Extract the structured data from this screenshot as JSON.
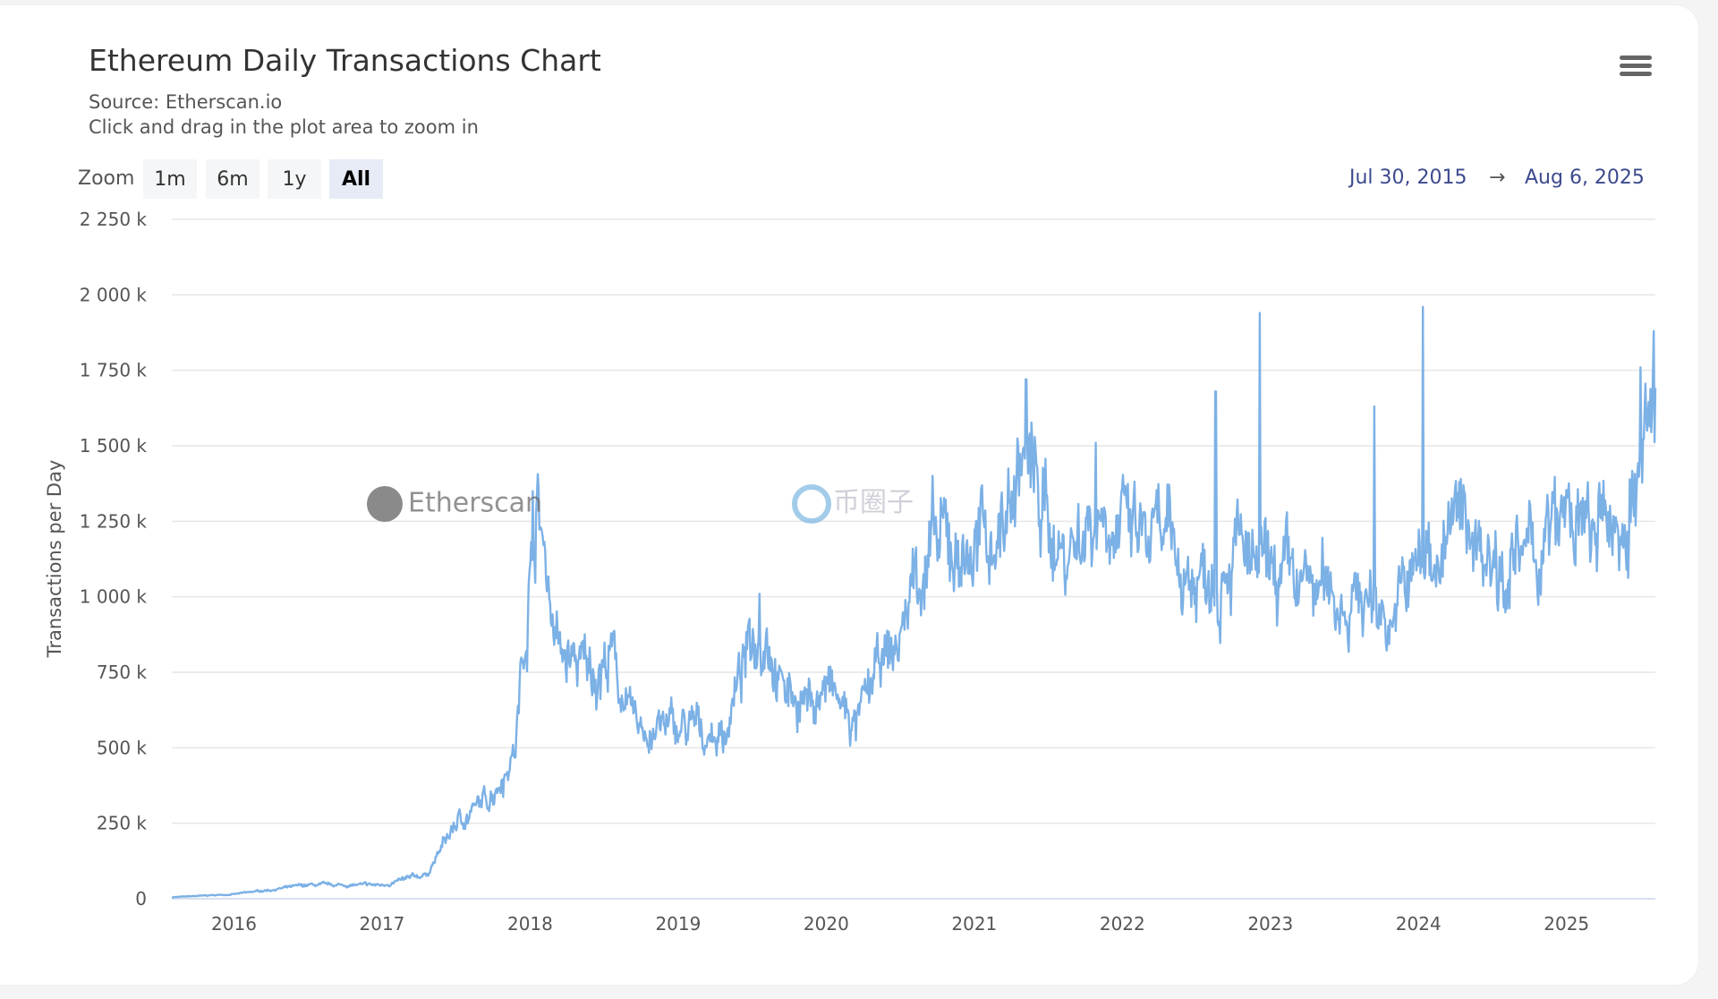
{
  "header": {
    "title": "Ethereum Daily Transactions Chart",
    "source": "Source: Etherscan.io",
    "hint": "Click and drag in the plot area to zoom in",
    "menu_icon": "hamburger-menu-icon"
  },
  "zoom": {
    "label": "Zoom",
    "buttons": [
      "1m",
      "6m",
      "1y",
      "All"
    ],
    "active": "All"
  },
  "range": {
    "from": "Jul 30, 2015",
    "arrow": "→",
    "to": "Aug 6, 2025"
  },
  "watermarks": {
    "etherscan": "Etherscan",
    "other": "币圈子"
  },
  "chart_data": {
    "type": "line",
    "title": "Ethereum Daily Transactions Chart",
    "ylabel": "Transactions per Day",
    "xlabel": "",
    "xlim": [
      2015.58,
      2025.6
    ],
    "ylim": [
      0,
      2250
    ],
    "y_unit": "thousands",
    "y_ticks": [
      0,
      250,
      500,
      750,
      1000,
      1250,
      1500,
      1750,
      2000,
      2250
    ],
    "y_tick_labels": [
      "0",
      "250 k",
      "500 k",
      "750 k",
      "1 000 k",
      "1 250 k",
      "1 500 k",
      "1 750 k",
      "2 000 k",
      "2 250 k"
    ],
    "x_ticks": [
      2016,
      2017,
      2018,
      2019,
      2020,
      2021,
      2022,
      2023,
      2024,
      2025
    ],
    "x_tick_labels": [
      "2016",
      "2017",
      "2018",
      "2019",
      "2020",
      "2021",
      "2022",
      "2023",
      "2024",
      "2025"
    ],
    "grid": true,
    "legend": "none",
    "color": "#7cb1e6",
    "series": [
      {
        "name": "Transactions per Day",
        "points": [
          [
            2015.58,
            5
          ],
          [
            2016.0,
            15
          ],
          [
            2016.5,
            45
          ],
          [
            2017.0,
            45
          ],
          [
            2017.3,
            80
          ],
          [
            2017.5,
            250
          ],
          [
            2017.7,
            320
          ],
          [
            2017.9,
            500
          ],
          [
            2018.0,
            1100
          ],
          [
            2018.05,
            1300
          ],
          [
            2018.2,
            800
          ],
          [
            2018.4,
            750
          ],
          [
            2018.55,
            800
          ],
          [
            2018.7,
            560
          ],
          [
            2018.9,
            560
          ],
          [
            2019.0,
            560
          ],
          [
            2019.3,
            540
          ],
          [
            2019.5,
            850
          ],
          [
            2019.6,
            930
          ],
          [
            2019.7,
            700
          ],
          [
            2019.9,
            650
          ],
          [
            2020.0,
            700
          ],
          [
            2020.2,
            560
          ],
          [
            2020.35,
            750
          ],
          [
            2020.5,
            850
          ],
          [
            2020.6,
            1100
          ],
          [
            2020.8,
            1150
          ],
          [
            2021.0,
            1150
          ],
          [
            2021.2,
            1250
          ],
          [
            2021.33,
            1480
          ],
          [
            2021.45,
            1300
          ],
          [
            2021.6,
            1150
          ],
          [
            2021.8,
            1280
          ],
          [
            2021.9,
            1330
          ],
          [
            2022.0,
            1200
          ],
          [
            2022.3,
            1150
          ],
          [
            2022.5,
            1050
          ],
          [
            2022.6,
            1120
          ],
          [
            2022.75,
            1200
          ],
          [
            2022.9,
            1050
          ],
          [
            2023.0,
            1050
          ],
          [
            2023.3,
            1020
          ],
          [
            2023.6,
            1000
          ],
          [
            2023.8,
            950
          ],
          [
            2023.9,
            1000
          ],
          [
            2024.0,
            1100
          ],
          [
            2024.2,
            1200
          ],
          [
            2024.3,
            1250
          ],
          [
            2024.5,
            1160
          ],
          [
            2024.7,
            1100
          ],
          [
            2024.9,
            1200
          ],
          [
            2025.0,
            1250
          ],
          [
            2025.2,
            1180
          ],
          [
            2025.4,
            1260
          ],
          [
            2025.5,
            1400
          ],
          [
            2025.6,
            1620
          ]
        ]
      }
    ],
    "spikes": [
      [
        2018.02,
        1350
      ],
      [
        2019.55,
        1010
      ],
      [
        2020.72,
        1400
      ],
      [
        2021.35,
        1720
      ],
      [
        2021.82,
        1510
      ],
      [
        2022.63,
        1680
      ],
      [
        2022.93,
        1940
      ],
      [
        2023.7,
        1630
      ],
      [
        2024.03,
        1960
      ],
      [
        2025.5,
        1760
      ],
      [
        2025.59,
        1880
      ]
    ]
  }
}
